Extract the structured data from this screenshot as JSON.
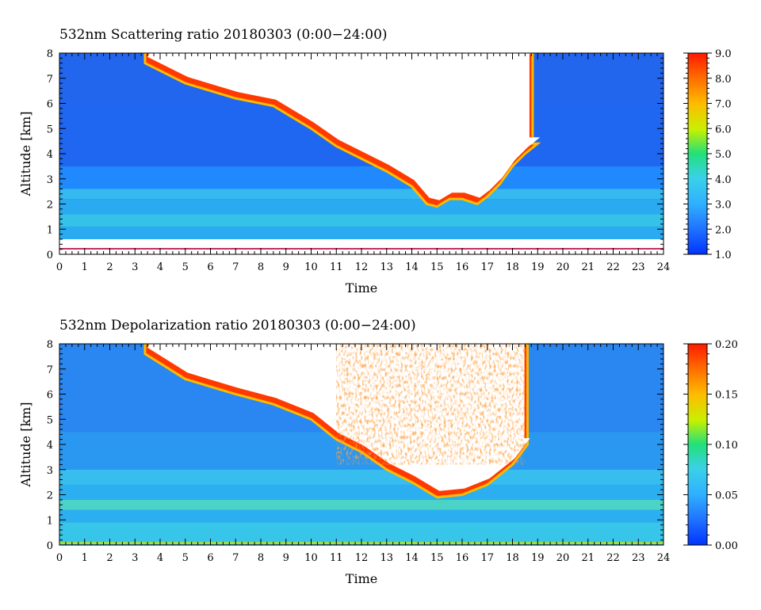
{
  "chart_data": [
    {
      "type": "heatmap",
      "title": "532nm Scattering ratio  20180303 (0:00−24:00)",
      "xlabel": "Time",
      "ylabel": "Altitude [km]",
      "xlim": [
        0,
        24
      ],
      "ylim": [
        0,
        8
      ],
      "x_ticks": [
        "0",
        "1",
        "2",
        "3",
        "4",
        "5",
        "6",
        "7",
        "8",
        "9",
        "10",
        "11",
        "12",
        "13",
        "14",
        "15",
        "16",
        "17",
        "18",
        "19",
        "20",
        "21",
        "22",
        "23",
        "24"
      ],
      "y_ticks": [
        "0",
        "1",
        "2",
        "3",
        "4",
        "5",
        "6",
        "7",
        "8"
      ],
      "colorbar": {
        "range": [
          1.0,
          9.0
        ],
        "ticks": [
          "1.0",
          "2.0",
          "3.0",
          "4.0",
          "5.0",
          "6.0",
          "7.0",
          "8.0",
          "9.0"
        ],
        "colors": [
          "#0033ff",
          "#1f8fff",
          "#3ad1e8",
          "#22e07a",
          "#c8f000",
          "#ffbb00",
          "#ff6a00",
          "#ff1a00"
        ]
      },
      "features": {
        "cloud_base_km": [
          {
            "t": 3.4,
            "z": 7.6
          },
          {
            "t": 5.0,
            "z": 6.8
          },
          {
            "t": 7.0,
            "z": 6.2
          },
          {
            "t": 8.5,
            "z": 5.9
          },
          {
            "t": 10.0,
            "z": 5.0
          },
          {
            "t": 11.0,
            "z": 4.3
          },
          {
            "t": 12.0,
            "z": 3.8
          },
          {
            "t": 13.0,
            "z": 3.3
          },
          {
            "t": 14.0,
            "z": 2.7
          },
          {
            "t": 14.6,
            "z": 2.0
          },
          {
            "t": 15.0,
            "z": 1.9
          },
          {
            "t": 15.5,
            "z": 2.2
          },
          {
            "t": 16.0,
            "z": 2.2
          },
          {
            "t": 16.6,
            "z": 2.0
          },
          {
            "t": 17.0,
            "z": 2.3
          },
          {
            "t": 17.5,
            "z": 2.8
          },
          {
            "t": 18.0,
            "z": 3.5
          },
          {
            "t": 18.5,
            "z": 4.0
          },
          {
            "t": 19.0,
            "z": 4.4
          }
        ],
        "cloud_top_km": 8.0,
        "cloud_top_clear_after_t": 18.8
      }
    },
    {
      "type": "heatmap",
      "title": "532nm Depolarization ratio  20180303 (0:00−24:00)",
      "xlabel": "Time",
      "ylabel": "Altitude [km]",
      "xlim": [
        0,
        24
      ],
      "ylim": [
        0,
        8
      ],
      "x_ticks": [
        "0",
        "1",
        "2",
        "3",
        "4",
        "5",
        "6",
        "7",
        "8",
        "9",
        "10",
        "11",
        "12",
        "13",
        "14",
        "15",
        "16",
        "17",
        "18",
        "19",
        "20",
        "21",
        "22",
        "23",
        "24"
      ],
      "y_ticks": [
        "0",
        "1",
        "2",
        "3",
        "4",
        "5",
        "6",
        "7",
        "8"
      ],
      "colorbar": {
        "range": [
          0.0,
          0.2
        ],
        "ticks": [
          "0.00",
          "0.05",
          "0.10",
          "0.15",
          "0.20"
        ],
        "colors": [
          "#0033ff",
          "#1f8fff",
          "#3ad1e8",
          "#22e07a",
          "#c8f000",
          "#ffbb00",
          "#ff6a00",
          "#ff1a00"
        ]
      },
      "features": {
        "cloud_base_km": [
          {
            "t": 3.4,
            "z": 7.6
          },
          {
            "t": 5.0,
            "z": 6.6
          },
          {
            "t": 7.0,
            "z": 6.0
          },
          {
            "t": 8.5,
            "z": 5.6
          },
          {
            "t": 10.0,
            "z": 5.0
          },
          {
            "t": 11.0,
            "z": 4.2
          },
          {
            "t": 12.0,
            "z": 3.7
          },
          {
            "t": 13.0,
            "z": 3.0
          },
          {
            "t": 14.0,
            "z": 2.5
          },
          {
            "t": 15.0,
            "z": 1.9
          },
          {
            "t": 16.0,
            "z": 2.0
          },
          {
            "t": 17.0,
            "z": 2.4
          },
          {
            "t": 18.0,
            "z": 3.2
          },
          {
            "t": 18.6,
            "z": 4.0
          }
        ],
        "cloud_top_km": 8.0,
        "cloud_top_clear_after_t": 18.6
      }
    }
  ]
}
